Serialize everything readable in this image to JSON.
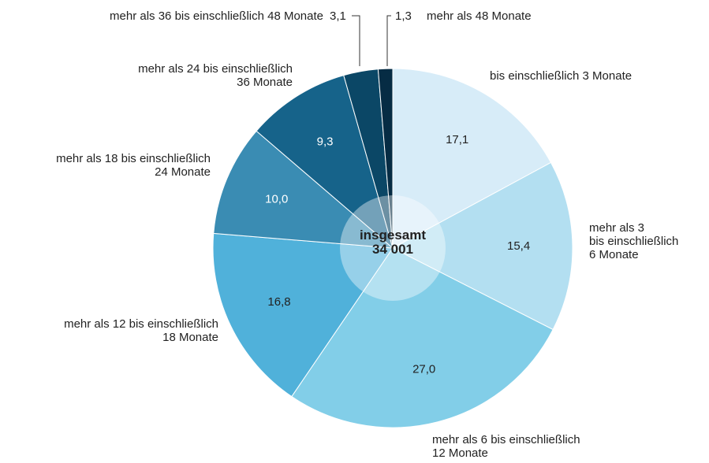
{
  "chart_data": {
    "type": "pie",
    "categories": [
      "bis einschließlich 3 Monate",
      "mehr als 3\nbis einschließlich\n6 Monate",
      "mehr als 6 bis einschließlich\n12 Monate",
      "mehr als 12 bis einschließlich\n18 Monate",
      "mehr als 18 bis einschließlich\n24 Monate",
      "mehr als 24 bis einschließlich\n36 Monate",
      "mehr als 36 bis einschließlich 48 Monate",
      "mehr als 48 Monate"
    ],
    "values": [
      17.1,
      15.4,
      27.0,
      16.8,
      10.0,
      9.3,
      3.1,
      1.3
    ],
    "value_labels": [
      "17,1",
      "15,4",
      "27,0",
      "16,8",
      "10,0",
      "9,3",
      "3,1",
      "1,3"
    ],
    "colors": [
      "#d7ecf8",
      "#b3dff1",
      "#82cee8",
      "#50b1da",
      "#3a8cb3",
      "#16638a",
      "#0b4766",
      "#062c44"
    ],
    "center_title": "insgesamt",
    "total": 34001,
    "total_label": "34 001"
  }
}
